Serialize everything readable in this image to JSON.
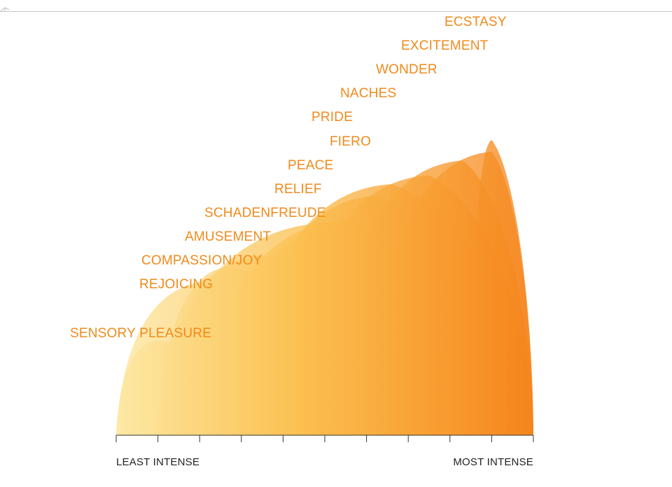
{
  "colors": {
    "label": "#f08a1c",
    "fill_light": "#fde7a0",
    "fill_mid": "#fbbf4f",
    "fill_dark": "#f5841c",
    "axis": "#333333",
    "rule": "#c8c8c8"
  },
  "chart_data": {
    "type": "area",
    "subtype": "overlapping petal/fan shapes, one per emotion, rising in intensity",
    "title": "",
    "xlabel": "",
    "ylabel": "",
    "x_range": [
      0,
      10
    ],
    "tick_count": 11,
    "x_axis_left_label": "LEAST INTENSE",
    "x_axis_right_label": "MOST INTENSE",
    "grid": false,
    "series": [
      {
        "name": "SENSORY PLEASURE",
        "start": 0.0,
        "end": 5.0,
        "peak": 1.0,
        "height": 0.32
      },
      {
        "name": "REJOICING",
        "start": 0.0,
        "end": 6.0,
        "peak": 2.2,
        "height": 0.52
      },
      {
        "name": "COMPASSION/JOY",
        "start": 1.0,
        "end": 6.0,
        "peak": 2.7,
        "height": 0.57
      },
      {
        "name": "AMUSEMENT",
        "start": 1.0,
        "end": 7.0,
        "peak": 3.5,
        "height": 0.61
      },
      {
        "name": "SCHADENFREUDE",
        "start": 1.0,
        "end": 8.0,
        "peak": 5.1,
        "height": 0.72
      },
      {
        "name": "RELIEF",
        "start": 2.0,
        "end": 8.0,
        "peak": 5.3,
        "height": 0.69
      },
      {
        "name": "PEACE",
        "start": 2.0,
        "end": 9.0,
        "peak": 5.6,
        "height": 0.73
      },
      {
        "name": "FIERO",
        "start": 3.0,
        "end": 9.0,
        "peak": 6.2,
        "height": 0.81
      },
      {
        "name": "PRIDE",
        "start": 3.0,
        "end": 10.0,
        "peak": 6.6,
        "height": 0.85
      },
      {
        "name": "NACHES",
        "start": 4.0,
        "end": 10.0,
        "peak": 7.5,
        "height": 0.88
      },
      {
        "name": "WONDER",
        "start": 5.0,
        "end": 10.0,
        "peak": 8.3,
        "height": 0.93
      },
      {
        "name": "EXCITEMENT",
        "start": 6.0,
        "end": 10.0,
        "peak": 9.0,
        "height": 0.96
      },
      {
        "name": "ECSTASY",
        "start": 8.5,
        "end": 10.0,
        "peak": 9.0,
        "height": 1.0
      }
    ]
  }
}
